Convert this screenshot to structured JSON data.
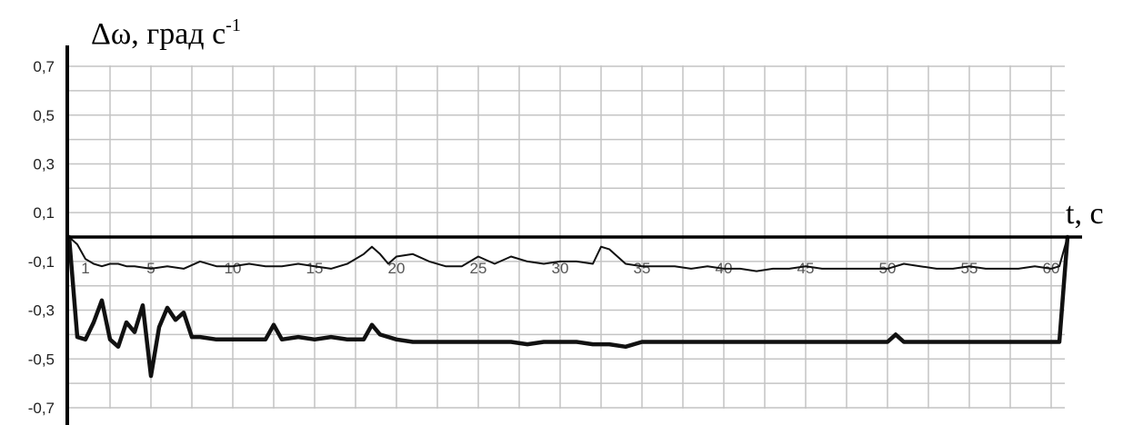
{
  "chart_data": {
    "type": "line",
    "ylabel": "Δω, град с",
    "ylabel_superscript": "-1",
    "xlabel": "t, с",
    "xlim": [
      0,
      61
    ],
    "ylim": [
      -0.75,
      0.75
    ],
    "y_ticks": [
      "0,7",
      "0,5",
      "0,3",
      "0,1",
      "-0,1",
      "-0,3",
      "-0,5",
      "-0,7"
    ],
    "y_tick_values": [
      0.7,
      0.5,
      0.3,
      0.1,
      -0.1,
      -0.3,
      -0.5,
      -0.7
    ],
    "x_ticks": [
      "1",
      "5",
      "10",
      "15",
      "20",
      "25",
      "30",
      "35",
      "40",
      "45",
      "50",
      "55",
      "60"
    ],
    "x_tick_values": [
      1,
      5,
      10,
      15,
      20,
      25,
      30,
      35,
      40,
      45,
      50,
      55,
      60
    ],
    "grid": true,
    "series": [
      {
        "style": "thin",
        "x": [
          0,
          0.5,
          1,
          1.5,
          2,
          2.5,
          3,
          3.5,
          4,
          5,
          6,
          7,
          8,
          9,
          10,
          11,
          12,
          13,
          14,
          15,
          16,
          17,
          18,
          18.5,
          19,
          19.5,
          20,
          21,
          22,
          23,
          24,
          25,
          26,
          27,
          28,
          29,
          30,
          31,
          32,
          32.5,
          33,
          34,
          35,
          36,
          37,
          38,
          39,
          40,
          41,
          42,
          43,
          44,
          45,
          46,
          47,
          48,
          49,
          50,
          51,
          52,
          53,
          54,
          55,
          56,
          57,
          58,
          59,
          60,
          60.5,
          61
        ],
        "y": [
          0.0,
          -0.03,
          -0.09,
          -0.11,
          -0.12,
          -0.11,
          -0.11,
          -0.12,
          -0.12,
          -0.13,
          -0.12,
          -0.13,
          -0.1,
          -0.12,
          -0.12,
          -0.11,
          -0.12,
          -0.12,
          -0.11,
          -0.12,
          -0.13,
          -0.11,
          -0.07,
          -0.04,
          -0.07,
          -0.11,
          -0.08,
          -0.07,
          -0.1,
          -0.12,
          -0.12,
          -0.08,
          -0.11,
          -0.08,
          -0.1,
          -0.11,
          -0.1,
          -0.1,
          -0.11,
          -0.04,
          -0.05,
          -0.11,
          -0.12,
          -0.12,
          -0.12,
          -0.13,
          -0.12,
          -0.13,
          -0.13,
          -0.14,
          -0.13,
          -0.13,
          -0.12,
          -0.13,
          -0.13,
          -0.13,
          -0.13,
          -0.13,
          -0.11,
          -0.12,
          -0.13,
          -0.13,
          -0.12,
          -0.13,
          -0.13,
          -0.13,
          -0.12,
          -0.13,
          -0.12,
          0.0
        ]
      },
      {
        "style": "thick",
        "x": [
          0,
          0.5,
          1,
          1.5,
          2,
          2.5,
          3,
          3.5,
          4,
          4.5,
          5,
          5.5,
          6,
          6.5,
          7,
          7.5,
          8,
          9,
          10,
          11,
          12,
          12.5,
          13,
          14,
          15,
          16,
          17,
          18,
          18.5,
          19,
          20,
          21,
          22,
          23,
          24,
          25,
          26,
          27,
          28,
          29,
          30,
          31,
          32,
          33,
          34,
          35,
          36,
          37,
          38,
          39,
          40,
          41,
          42,
          43,
          44,
          45,
          46,
          47,
          48,
          49,
          50,
          50.5,
          51,
          52,
          53,
          54,
          55,
          56,
          57,
          58,
          59,
          60,
          60.5,
          61
        ],
        "y": [
          0.0,
          -0.41,
          -0.42,
          -0.35,
          -0.26,
          -0.42,
          -0.45,
          -0.35,
          -0.39,
          -0.28,
          -0.57,
          -0.37,
          -0.29,
          -0.34,
          -0.31,
          -0.41,
          -0.41,
          -0.42,
          -0.42,
          -0.42,
          -0.42,
          -0.36,
          -0.42,
          -0.41,
          -0.42,
          -0.41,
          -0.42,
          -0.42,
          -0.36,
          -0.4,
          -0.42,
          -0.43,
          -0.43,
          -0.43,
          -0.43,
          -0.43,
          -0.43,
          -0.43,
          -0.44,
          -0.43,
          -0.43,
          -0.43,
          -0.44,
          -0.44,
          -0.45,
          -0.43,
          -0.43,
          -0.43,
          -0.43,
          -0.43,
          -0.43,
          -0.43,
          -0.43,
          -0.43,
          -0.43,
          -0.43,
          -0.43,
          -0.43,
          -0.43,
          -0.43,
          -0.43,
          -0.4,
          -0.43,
          -0.43,
          -0.43,
          -0.43,
          -0.43,
          -0.43,
          -0.43,
          -0.43,
          -0.43,
          -0.43,
          -0.43,
          0.0
        ]
      }
    ]
  }
}
